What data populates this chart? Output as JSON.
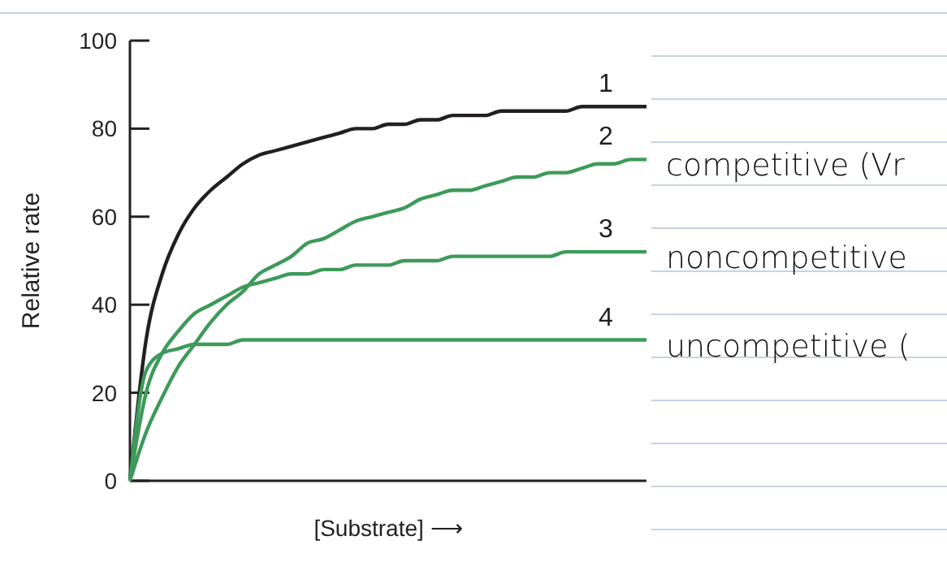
{
  "chart_data": {
    "type": "line",
    "xlabel": "[Substrate] ⟶",
    "ylabel": "Relative rate",
    "categories": [
      null,
      null,
      null,
      null,
      null,
      null,
      null,
      null,
      null,
      null,
      null,
      null,
      null,
      null,
      null,
      null,
      null,
      null,
      null,
      null,
      null,
      null,
      null,
      null,
      null,
      null,
      null,
      null,
      null,
      null,
      null,
      null,
      null
    ],
    "series": [
      {
        "name": "1",
        "color": "#231f20",
        "values": [
          0,
          32,
          47,
          56,
          62,
          66,
          69,
          72,
          74,
          75,
          76,
          77,
          78,
          79,
          80,
          80,
          81,
          81,
          82,
          82,
          83,
          83,
          83,
          84,
          84,
          84,
          84,
          84,
          85,
          85,
          85,
          85,
          85
        ]
      },
      {
        "name": "2",
        "color": "#3d9a5a",
        "values": [
          0,
          11,
          19,
          26,
          31,
          36,
          40,
          43,
          47,
          49,
          51,
          54,
          55,
          57,
          59,
          60,
          61,
          62,
          64,
          65,
          66,
          66,
          67,
          68,
          69,
          69,
          70,
          70,
          71,
          72,
          72,
          73,
          73
        ]
      },
      {
        "name": "3",
        "color": "#3d9a5a",
        "values": [
          0,
          20,
          29,
          34,
          38,
          40,
          42,
          44,
          45,
          46,
          47,
          47,
          48,
          48,
          49,
          49,
          49,
          50,
          50,
          50,
          51,
          51,
          51,
          51,
          51,
          51,
          51,
          52,
          52,
          52,
          52,
          52,
          52
        ]
      },
      {
        "name": "4",
        "color": "#3d9a5a",
        "values": [
          0,
          25,
          29,
          30,
          31,
          31,
          31,
          32,
          32,
          32,
          32,
          32,
          32,
          32,
          32,
          32,
          32,
          32,
          32,
          32,
          32,
          32,
          32,
          32,
          32,
          32,
          32,
          32,
          32,
          32,
          32,
          32,
          32
        ]
      }
    ],
    "ylim": [
      0,
      100
    ],
    "yticks": [
      0,
      20,
      40,
      60,
      80,
      100
    ],
    "grid": false,
    "legend": false,
    "marker": "none",
    "line_style": "solid",
    "annotations": [
      "competitive (Vr",
      "noncompetitive",
      "uncompetitive ("
    ]
  }
}
